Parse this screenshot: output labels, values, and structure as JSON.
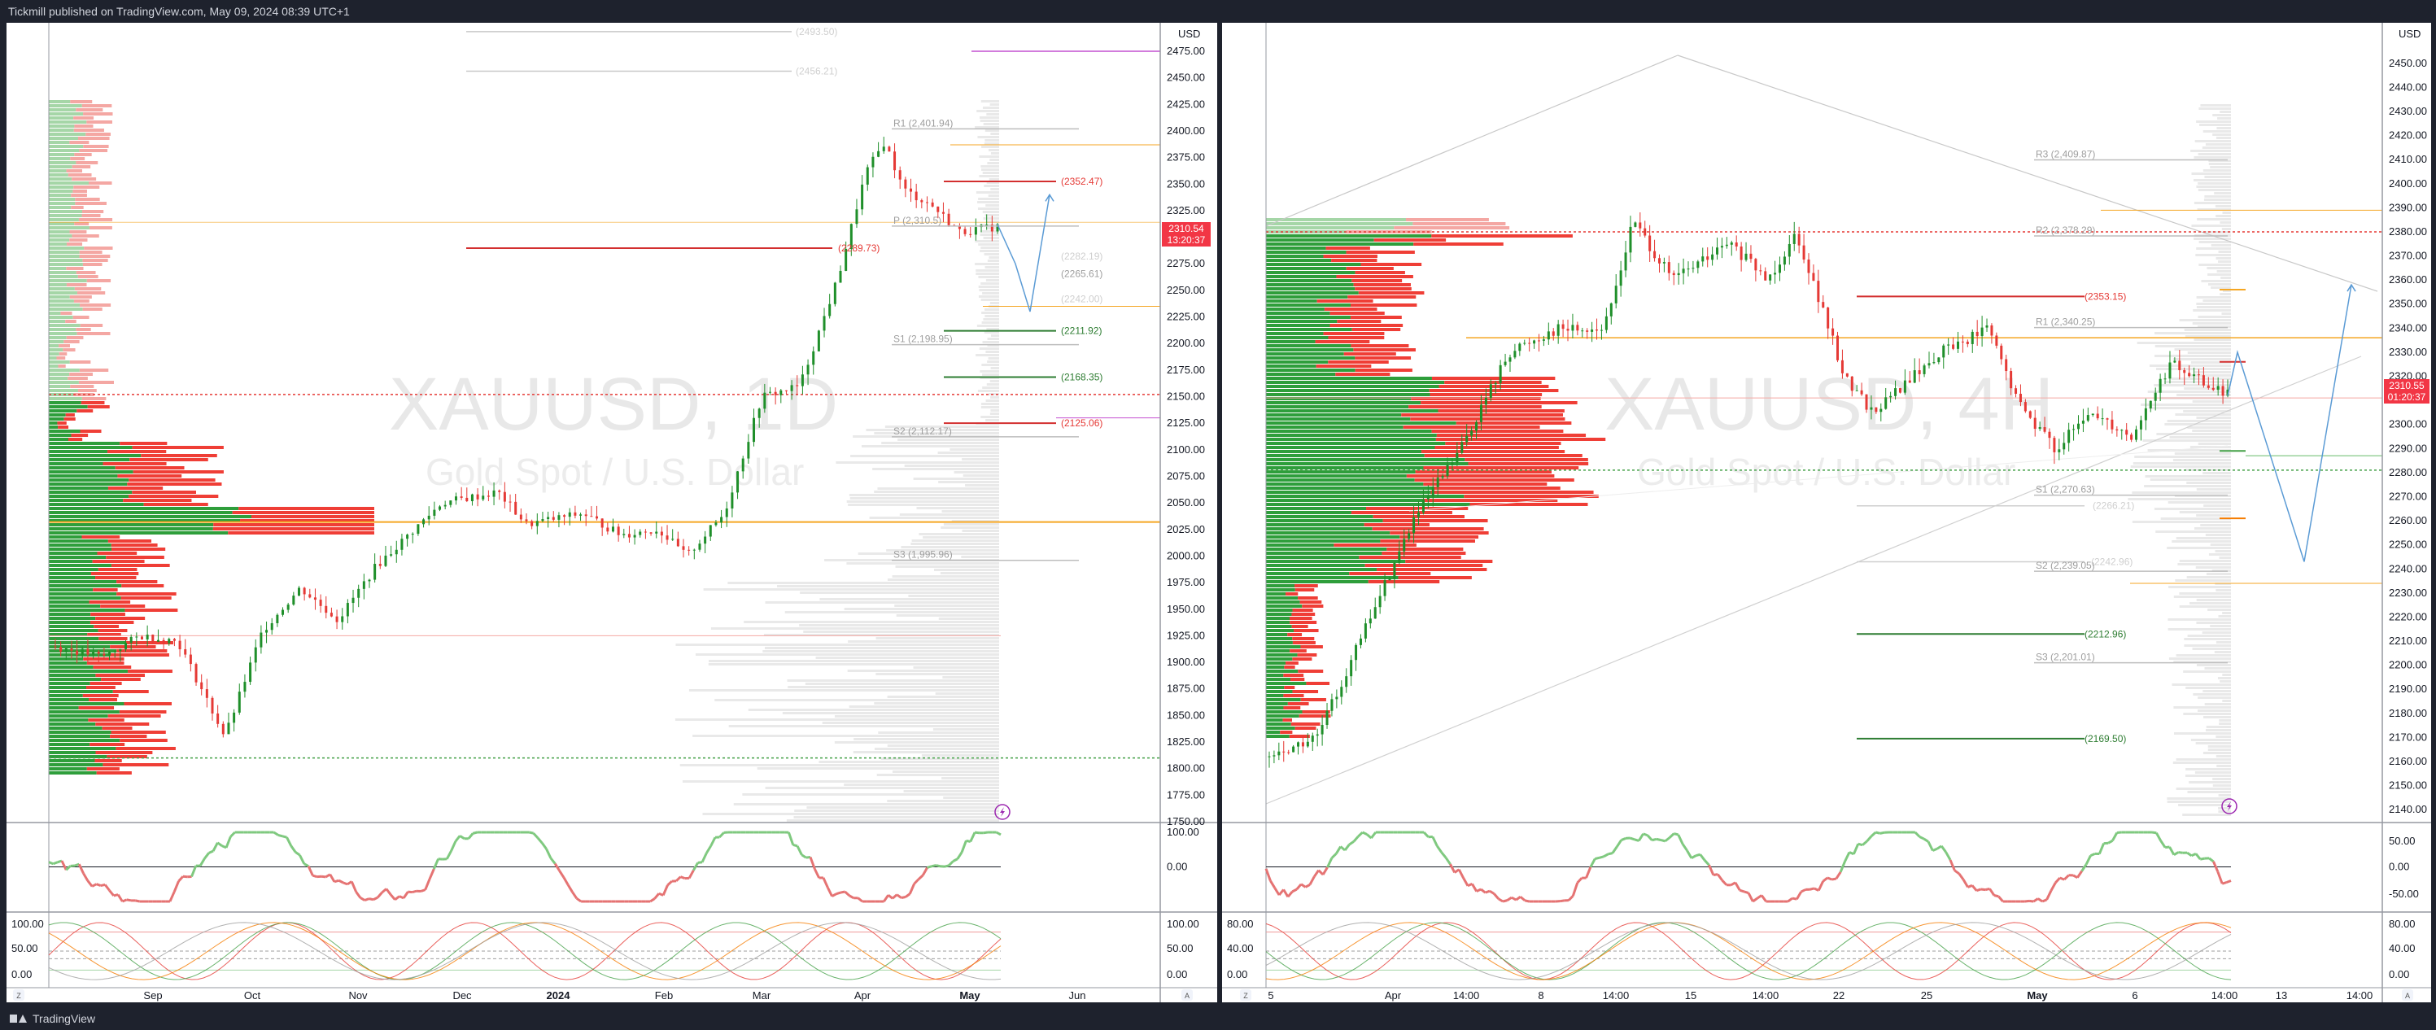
{
  "header": {
    "publisher": "Tickmill published on TradingView.com, May 09, 2024 08:39 UTC+1"
  },
  "footer": {
    "brand": "TradingView"
  },
  "colors": {
    "up": "#26a69a",
    "up_candle": "#1f8f2a",
    "down": "#e53935",
    "accent_orange": "#f5a623",
    "price_tag": "#f23645",
    "green_line": "#388e3c",
    "red_line": "#d32f2f",
    "purple": "#c451d1",
    "lightning": "#9c27b0",
    "osc_green": "#7fc97f",
    "osc_red": "#e57373"
  },
  "icons": {
    "lightning": "lightning-icon",
    "log_scale": "log-scale-button",
    "auto_scale": "auto-scale-button"
  },
  "left_chart": {
    "watermark": {
      "symbol": "XAUUSD, 1D",
      "description": "Gold Spot / U.S. Dollar"
    },
    "currency": "USD",
    "price_tag": {
      "price": "2310.54",
      "countdown": "13:20:37"
    },
    "y_range": [
      1750,
      2475
    ],
    "y_ticks": [
      "2475.00",
      "2450.00",
      "2425.00",
      "2400.00",
      "2375.00",
      "2350.00",
      "2325.00",
      "2300.00",
      "2275.00",
      "2250.00",
      "2225.00",
      "2200.00",
      "2175.00",
      "2150.00",
      "2125.00",
      "2100.00",
      "2075.00",
      "2050.00",
      "2025.00",
      "2000.00",
      "1975.00",
      "1950.00",
      "1925.00",
      "1900.00",
      "1875.00",
      "1850.00",
      "1825.00",
      "1800.00",
      "1775.00",
      "1750.00"
    ],
    "x_labels": [
      "Sep",
      "Oct",
      "Nov",
      "Dec",
      "2024",
      "Feb",
      "Mar",
      "Apr",
      "May",
      "Jun"
    ],
    "pivot_labels": [
      {
        "text": "R1 (2,401.94)",
        "price": 2401.94,
        "color": "#9e9e9e"
      },
      {
        "text": "P (2,310.5)",
        "price": 2310.5,
        "color": "#9e9e9e"
      },
      {
        "text": "S1 (2,198.95)",
        "price": 2198.95,
        "color": "#9e9e9e"
      },
      {
        "text": "S2 (2,112.17)",
        "price": 2112.17,
        "color": "#9e9e9e"
      },
      {
        "text": "S3 (1,995.96)",
        "price": 1995.96,
        "color": "#9e9e9e"
      }
    ],
    "level_labels": [
      {
        "text": "(2493.50)",
        "price": 2493.5,
        "color": "#cfcfcf"
      },
      {
        "text": "(2456.21)",
        "price": 2456.21,
        "color": "#cfcfcf"
      },
      {
        "text": "(2352.47)",
        "price": 2352.47,
        "color": "#e53935"
      },
      {
        "text": "(2289.73)",
        "price": 2289.73,
        "color": "#e53935"
      },
      {
        "text": "(2282.19)",
        "price": 2282.19,
        "color": "#cfcfcf"
      },
      {
        "text": "(2265.61)",
        "price": 2265.61,
        "color": "#9e9e9e"
      },
      {
        "text": "(2242.00)",
        "price": 2242.0,
        "color": "#cfcfcf"
      },
      {
        "text": "(2211.92)",
        "price": 2211.92,
        "color": "#2e7d32"
      },
      {
        "text": "(2168.35)",
        "price": 2168.35,
        "color": "#2e7d32"
      },
      {
        "text": "(2125.06)",
        "price": 2125.06,
        "color": "#e53935"
      }
    ],
    "rsi_ticks": [
      "100.00",
      "0.00"
    ],
    "stoch_ticks": [
      "100.00",
      "50.00",
      "0.00"
    ]
  },
  "right_chart": {
    "watermark": {
      "symbol": "XAUUSD, 4H",
      "description": "Gold Spot / U.S. Dollar"
    },
    "currency": "USD",
    "price_tag": {
      "price": "2310.55",
      "countdown": "01:20:37"
    },
    "y_range": [
      2135,
      2455
    ],
    "y_ticks": [
      "2450.00",
      "2440.00",
      "2430.00",
      "2420.00",
      "2410.00",
      "2400.00",
      "2390.00",
      "2380.00",
      "2370.00",
      "2360.00",
      "2350.00",
      "2340.00",
      "2330.00",
      "2320.00",
      "2310.00",
      "2300.00",
      "2290.00",
      "2280.00",
      "2270.00",
      "2260.00",
      "2250.00",
      "2240.00",
      "2230.00",
      "2220.00",
      "2210.00",
      "2200.00",
      "2190.00",
      "2180.00",
      "2170.00",
      "2160.00",
      "2150.00",
      "2140.00"
    ],
    "x_labels": [
      "5",
      "Apr",
      "14:00",
      "8",
      "14:00",
      "15",
      "14:00",
      "22",
      "25",
      "May",
      "6",
      "14:00",
      "13",
      "14:00"
    ],
    "pivot_labels": [
      {
        "text": "R3 (2,409.87)",
        "price": 2409.87,
        "color": "#9e9e9e"
      },
      {
        "text": "R2 (2,378.29)",
        "price": 2378.29,
        "color": "#9e9e9e"
      },
      {
        "text": "R1 (2,340.25)",
        "price": 2340.25,
        "color": "#9e9e9e"
      },
      {
        "text": "S1 (2,270.63)",
        "price": 2270.63,
        "color": "#9e9e9e"
      },
      {
        "text": "S2 (2,239.05)",
        "price": 2239.05,
        "color": "#9e9e9e"
      },
      {
        "text": "S3 (2,201.01)",
        "price": 2201.01,
        "color": "#9e9e9e"
      }
    ],
    "level_labels": [
      {
        "text": "(2353.15)",
        "price": 2353.15,
        "color": "#e53935"
      },
      {
        "text": "(2266.21)",
        "price": 2266.21,
        "color": "#cfcfcf"
      },
      {
        "text": "(2242.96)",
        "price": 2242.96,
        "color": "#cfcfcf"
      },
      {
        "text": "(2212.96)",
        "price": 2212.96,
        "color": "#2e7d32"
      },
      {
        "text": "(2169.50)",
        "price": 2169.5,
        "color": "#2e7d32"
      }
    ],
    "rsi_ticks": [
      "50.00",
      "0.00",
      "-50.00"
    ],
    "stoch_ticks": [
      "80.00",
      "40.00",
      "0.00"
    ]
  }
}
